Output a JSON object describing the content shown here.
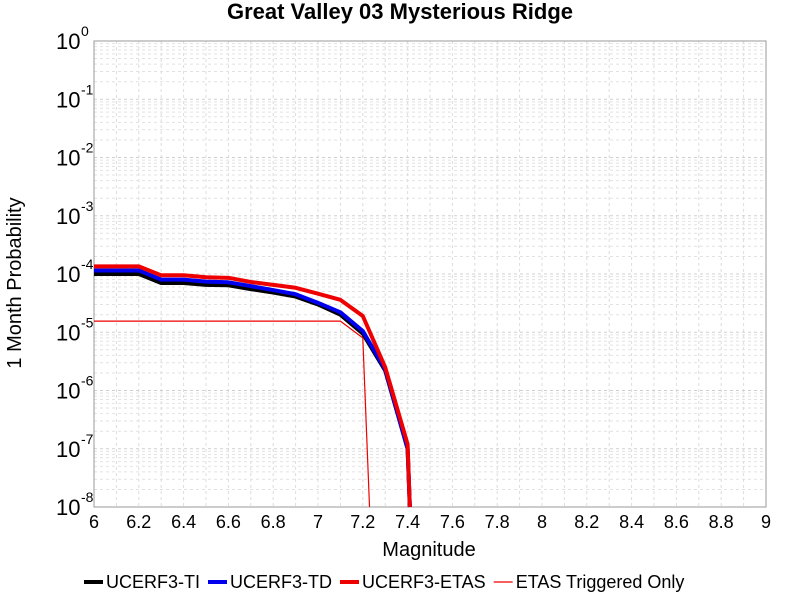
{
  "chart_data": {
    "type": "line",
    "title": "Great Valley 03 Mysterious Ridge",
    "xlabel": "Magnitude",
    "ylabel": "1 Month Probability",
    "xlim": [
      6,
      9
    ],
    "ylim": [
      1e-08,
      1
    ],
    "yscale": "log",
    "grid": true,
    "legend_position": "bottom",
    "xticks": [
      "6",
      "6.2",
      "6.4",
      "6.6",
      "6.8",
      "7",
      "7.2",
      "7.4",
      "7.6",
      "7.8",
      "8",
      "8.2",
      "8.4",
      "8.6",
      "8.8",
      "9"
    ],
    "yticks": [
      {
        "base": "10",
        "exp": "0"
      },
      {
        "base": "10",
        "exp": "-1"
      },
      {
        "base": "10",
        "exp": "-2"
      },
      {
        "base": "10",
        "exp": "-3"
      },
      {
        "base": "10",
        "exp": "-4"
      },
      {
        "base": "10",
        "exp": "-5"
      },
      {
        "base": "10",
        "exp": "-6"
      },
      {
        "base": "10",
        "exp": "-7"
      },
      {
        "base": "10",
        "exp": "-8"
      }
    ],
    "series": [
      {
        "name": "UCERF3-TI",
        "color": "#000000",
        "weight": "thick",
        "x": [
          6.0,
          6.2,
          6.3,
          6.4,
          6.5,
          6.6,
          6.7,
          6.8,
          6.9,
          7.0,
          7.1,
          7.2,
          7.3,
          7.4,
          7.41
        ],
        "y": [
          0.0001,
          0.0001,
          7e-05,
          7e-05,
          6.5e-05,
          6.4e-05,
          5.5e-05,
          4.8e-05,
          4.1e-05,
          3e-05,
          2e-05,
          9.5e-06,
          2.2e-06,
          1e-07,
          1e-08
        ]
      },
      {
        "name": "UCERF3-TD",
        "color": "#0000ee",
        "weight": "thick",
        "x": [
          6.0,
          6.2,
          6.3,
          6.4,
          6.5,
          6.6,
          6.7,
          6.8,
          6.9,
          7.0,
          7.1,
          7.2,
          7.3,
          7.4,
          7.41
        ],
        "y": [
          0.000115,
          0.000115,
          8e-05,
          8e-05,
          7.4e-05,
          7.2e-05,
          6.2e-05,
          5.3e-05,
          4.5e-05,
          3.2e-05,
          2.2e-05,
          1.05e-05,
          2.3e-06,
          1e-07,
          1e-08
        ]
      },
      {
        "name": "UCERF3-ETAS",
        "color": "#ee0000",
        "weight": "thick",
        "x": [
          6.0,
          6.2,
          6.3,
          6.4,
          6.5,
          6.6,
          6.7,
          6.8,
          6.9,
          7.0,
          7.1,
          7.2,
          7.3,
          7.4,
          7.41
        ],
        "y": [
          0.000135,
          0.000135,
          9.5e-05,
          9.5e-05,
          8.8e-05,
          8.6e-05,
          7.3e-05,
          6.5e-05,
          5.8e-05,
          4.6e-05,
          3.6e-05,
          1.9e-05,
          2.5e-06,
          1.2e-07,
          1e-08
        ]
      },
      {
        "name": "ETAS Triggered Only",
        "color": "#ee0000",
        "weight": "thin",
        "x": [
          6.0,
          7.0,
          7.1,
          7.2,
          7.23
        ],
        "y": [
          1.55e-05,
          1.55e-05,
          1.55e-05,
          8e-06,
          1e-08
        ]
      }
    ]
  }
}
